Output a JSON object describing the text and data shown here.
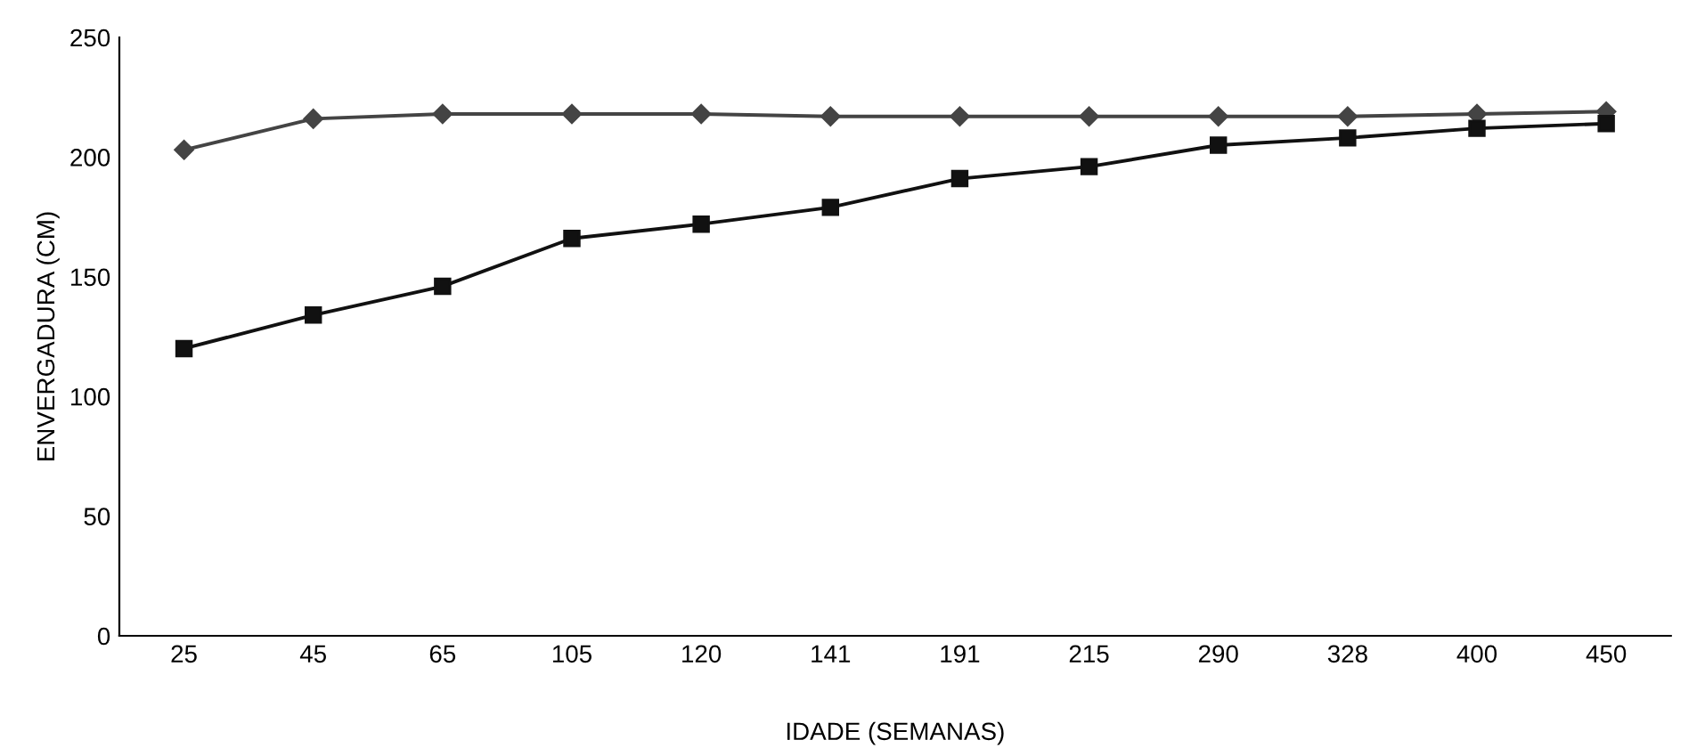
{
  "chart_data": {
    "type": "line",
    "xlabel": "IDADE (SEMANAS)",
    "ylabel": "ENVERGADURA (CM)",
    "categories": [
      "25",
      "45",
      "65",
      "105",
      "120",
      "141",
      "191",
      "215",
      "290",
      "328",
      "400",
      "450"
    ],
    "series": [
      {
        "color": "#444444",
        "marker": "diamond",
        "values": [
          203,
          216,
          218,
          218,
          218,
          217,
          217,
          217,
          217,
          217,
          218,
          219
        ]
      },
      {
        "color": "#111111",
        "marker": "square",
        "values": [
          120,
          134,
          146,
          166,
          172,
          179,
          191,
          196,
          205,
          208,
          212,
          214
        ]
      }
    ],
    "ylim": [
      0,
      250
    ],
    "yticks": [
      0,
      50,
      100,
      150,
      200,
      250
    ],
    "grid": false,
    "line_style": "solid"
  }
}
